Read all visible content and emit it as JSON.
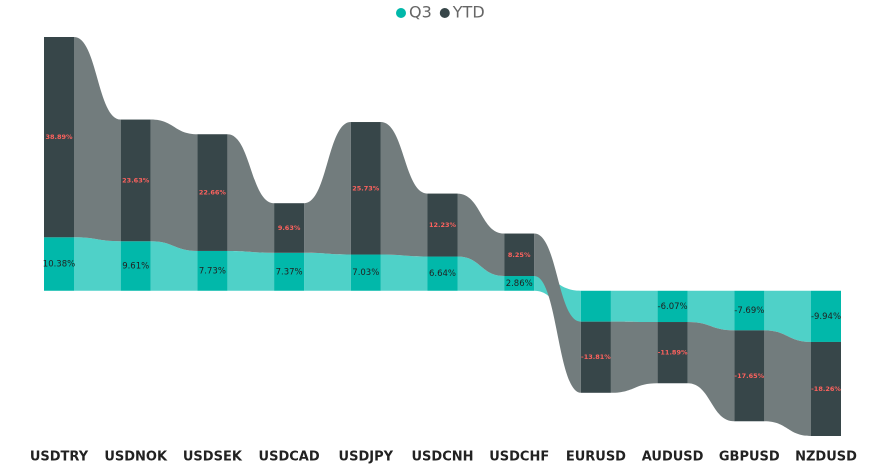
{
  "chart_data": {
    "type": "ribbon",
    "categories": [
      "USDTRY",
      "USDNOK",
      "USDSEK",
      "USDCAD",
      "USDJPY",
      "USDCNH",
      "USDCHF",
      "EURUSD",
      "AUDUSD",
      "GBPUSD",
      "NZDUSD"
    ],
    "series": [
      {
        "name": "Q3",
        "color": "#01b8aa",
        "ribbon_color": "#4fd1c8",
        "label_color": "#222222",
        "values": [
          10.38,
          9.61,
          7.73,
          7.37,
          7.03,
          6.64,
          2.86,
          -6,
          -6.07,
          -7.69,
          -9.94
        ],
        "value_labels": [
          "10.38%",
          "9.61%",
          "7.73%",
          "7.37%",
          "7.03%",
          "6.64%",
          "2.86%",
          null,
          "-6.07%",
          "-7.69%",
          "-9.94%"
        ]
      },
      {
        "name": "YTD",
        "color": "#374649",
        "ribbon_color": "#727c7d",
        "label_color": "#fd625e",
        "values": [
          38.89,
          23.63,
          22.66,
          9.63,
          25.73,
          12.23,
          8.25,
          -13.81,
          -11.89,
          -17.65,
          -18.26
        ],
        "value_labels": [
          "38.89%",
          "23.63%",
          "22.66%",
          "9.63%",
          "25.73%",
          "12.23%",
          "8.25%",
          "-13.81%",
          "-11.89%",
          "-17.65%",
          "-18.26%"
        ]
      }
    ],
    "legend": "top"
  }
}
